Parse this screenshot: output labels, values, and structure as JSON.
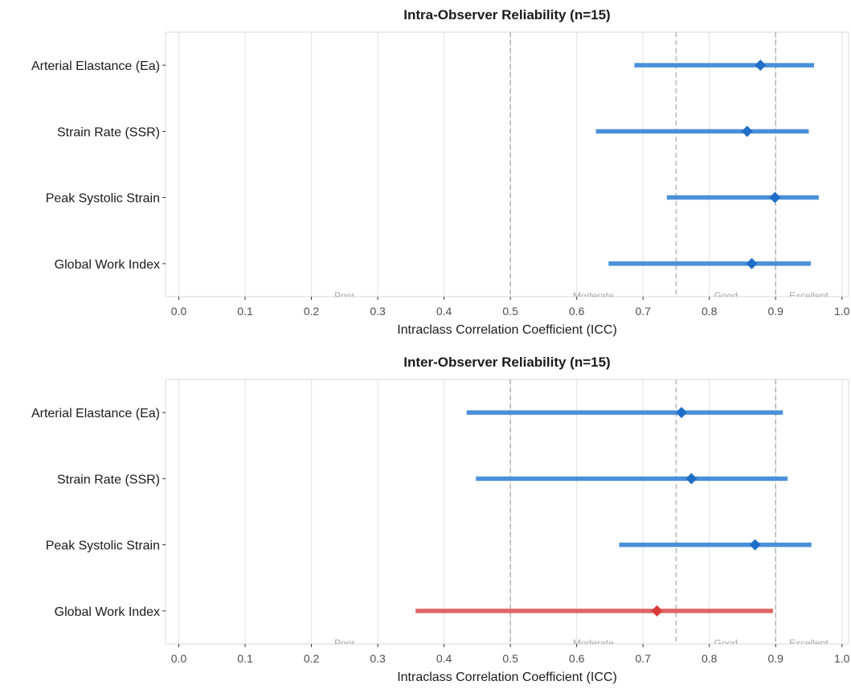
{
  "colors": {
    "adequate": "#4A90D9",
    "adequate_point": "#1F6FC8",
    "inadequate": "#E06666",
    "inadequate_point": "#D93A3A",
    "threshold": "#B3B3B3",
    "zone_label": "#A6A6A6",
    "grid": "#E6E6E6",
    "panel_border": "#D9D9D9"
  },
  "chart_data": [
    {
      "type": "forest",
      "title": "Intra-Observer Reliability (n=15)",
      "xlabel": "Intraclass Correlation Coefficient (ICC)",
      "xlim": [
        -0.02,
        1.01
      ],
      "xticks": [
        "0.0",
        "0.1",
        "0.2",
        "0.3",
        "0.4",
        "0.5",
        "0.6",
        "0.7",
        "0.8",
        "0.9",
        "1.0"
      ],
      "grid": true,
      "thresholds": [
        0.5,
        0.75,
        0.9
      ],
      "zones": [
        {
          "label": "Poor",
          "x": 0.25
        },
        {
          "label": "Moderate",
          "x": 0.625
        },
        {
          "label": "Good",
          "x": 0.825
        },
        {
          "label": "Excellent",
          "x": 0.95
        }
      ],
      "rows": [
        {
          "label": "Arterial Elastance (Ea)",
          "icc": 0.877,
          "lower": 0.687,
          "upper": 0.958,
          "status": "adequate"
        },
        {
          "label": "Strain Rate (SSR)",
          "icc": 0.857,
          "lower": 0.629,
          "upper": 0.95,
          "status": "adequate"
        },
        {
          "label": "Peak Systolic Strain",
          "icc": 0.899,
          "lower": 0.736,
          "upper": 0.965,
          "status": "adequate"
        },
        {
          "label": "Global Work Index",
          "icc": 0.864,
          "lower": 0.648,
          "upper": 0.953,
          "status": "adequate"
        }
      ]
    },
    {
      "type": "forest",
      "title": "Inter-Observer Reliability (n=15)",
      "xlabel": "Intraclass Correlation Coefficient (ICC)",
      "xlim": [
        -0.02,
        1.01
      ],
      "xticks": [
        "0.0",
        "0.1",
        "0.2",
        "0.3",
        "0.4",
        "0.5",
        "0.6",
        "0.7",
        "0.8",
        "0.9",
        "1.0"
      ],
      "grid": true,
      "thresholds": [
        0.5,
        0.75,
        0.9
      ],
      "zones": [
        {
          "label": "Poor",
          "x": 0.25
        },
        {
          "label": "Moderate",
          "x": 0.625
        },
        {
          "label": "Good",
          "x": 0.825
        },
        {
          "label": "Excellent",
          "x": 0.95
        }
      ],
      "rows": [
        {
          "label": "Arterial Elastance (Ea)",
          "icc": 0.758,
          "lower": 0.434,
          "upper": 0.911,
          "status": "adequate"
        },
        {
          "label": "Strain Rate (SSR)",
          "icc": 0.773,
          "lower": 0.448,
          "upper": 0.918,
          "status": "adequate"
        },
        {
          "label": "Peak Systolic Strain",
          "icc": 0.869,
          "lower": 0.664,
          "upper": 0.954,
          "status": "adequate"
        },
        {
          "label": "Global Work Index",
          "icc": 0.721,
          "lower": 0.357,
          "upper": 0.896,
          "status": "inadequate"
        }
      ]
    }
  ]
}
